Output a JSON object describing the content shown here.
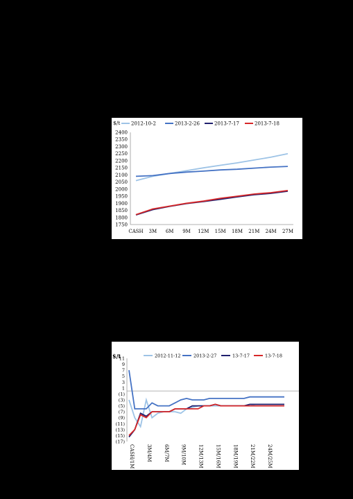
{
  "chart_data": [
    {
      "type": "line",
      "ylabel": "$/t",
      "categories": [
        "CASH",
        "3M",
        "6M",
        "9M",
        "12M",
        "15M",
        "18M",
        "21M",
        "24M",
        "27M"
      ],
      "ylim": [
        1750,
        2400
      ],
      "yticks": [
        1750,
        1800,
        1850,
        1900,
        1950,
        2000,
        2050,
        2100,
        2150,
        2200,
        2250,
        2300,
        2350,
        2400
      ],
      "legend": "top",
      "grid": false,
      "series": [
        {
          "name": "2012-10-2",
          "color": "#9dc3e6",
          "values": [
            2060,
            2090,
            2110,
            2130,
            2150,
            2168,
            2185,
            2205,
            2225,
            2250
          ]
        },
        {
          "name": "2013-2-26",
          "color": "#4472c4",
          "values": [
            2090,
            2095,
            2110,
            2120,
            2127,
            2135,
            2140,
            2148,
            2155,
            2160
          ]
        },
        {
          "name": "2013-7-17",
          "color": "#1f1f6e",
          "values": [
            1818,
            1855,
            1878,
            1898,
            1912,
            1928,
            1945,
            1960,
            1970,
            1985
          ]
        },
        {
          "name": "2013-7-18",
          "color": "#d62728",
          "values": [
            1820,
            1860,
            1880,
            1900,
            1915,
            1935,
            1950,
            1965,
            1975,
            1990
          ]
        }
      ]
    },
    {
      "type": "line",
      "ylabel": "$/t",
      "categories": [
        "CASH/1M",
        "",
        "",
        "3M/4M",
        "",
        "",
        "6M/7M",
        "",
        "",
        "9M/10M",
        "",
        "",
        "12M/13M",
        "",
        "",
        "15M/16M",
        "",
        "",
        "18M/19M",
        "",
        "",
        "21M/22M",
        "",
        "",
        "24M/25M",
        "",
        "",
        ""
      ],
      "ylim": [
        -17,
        11
      ],
      "yticks": [
        11,
        9,
        7,
        5,
        3,
        1,
        -1,
        -3,
        -5,
        -7,
        -9,
        -11,
        -13,
        -15,
        -17
      ],
      "ytick_labels": [
        "11",
        "9",
        "7",
        "5",
        "3",
        "1",
        "(1)",
        "(3)",
        "(5)",
        "(7)",
        "(9)",
        "(11)",
        "(13)",
        "(15)",
        "(17)"
      ],
      "legend": "top",
      "grid": false,
      "series": [
        {
          "name": "2012-11-12",
          "color": "#9dc3e6",
          "values": [
            -3,
            -9,
            -12,
            -3,
            -9,
            -7.5,
            -7,
            -7,
            -7,
            -7.5,
            -6,
            -5.5,
            -5,
            -5,
            -5,
            -5,
            -5,
            -5,
            -5,
            -5,
            -5,
            -5,
            -4.5,
            -4.5,
            -4.5,
            -4.5,
            -4.5,
            -4.5
          ]
        },
        {
          "name": "2013-2-27",
          "color": "#4472c4",
          "values": [
            7,
            -6,
            -6,
            -6,
            -4,
            -5,
            -5,
            -5,
            -4,
            -3,
            -2.5,
            -3,
            -3,
            -3,
            -2.5,
            -2.5,
            -2.5,
            -2.5,
            -2.5,
            -2.5,
            -2.5,
            -2,
            -2,
            -2,
            -2,
            -2,
            -2,
            -2
          ]
        },
        {
          "name": "13-7-17",
          "color": "#1f1f6e",
          "values": [
            -15.5,
            -13,
            -7.5,
            -8.5,
            -7,
            -7,
            -7,
            -7,
            -6,
            -6,
            -6,
            -5,
            -5,
            -5,
            -5,
            -4.5,
            -5,
            -5,
            -5,
            -5,
            -5,
            -4.5,
            -4.5,
            -4.5,
            -4.5,
            -4.5,
            -4.5,
            -4.5
          ]
        },
        {
          "name": "13-7-18",
          "color": "#d62728",
          "values": [
            -15,
            -13,
            -8,
            -9,
            -7,
            -7,
            -7,
            -7,
            -6,
            -6,
            -6,
            -6,
            -6,
            -5,
            -5,
            -4.5,
            -5,
            -5,
            -5,
            -5,
            -5,
            -5,
            -5,
            -5,
            -5,
            -5,
            -5,
            -5
          ]
        }
      ]
    }
  ]
}
